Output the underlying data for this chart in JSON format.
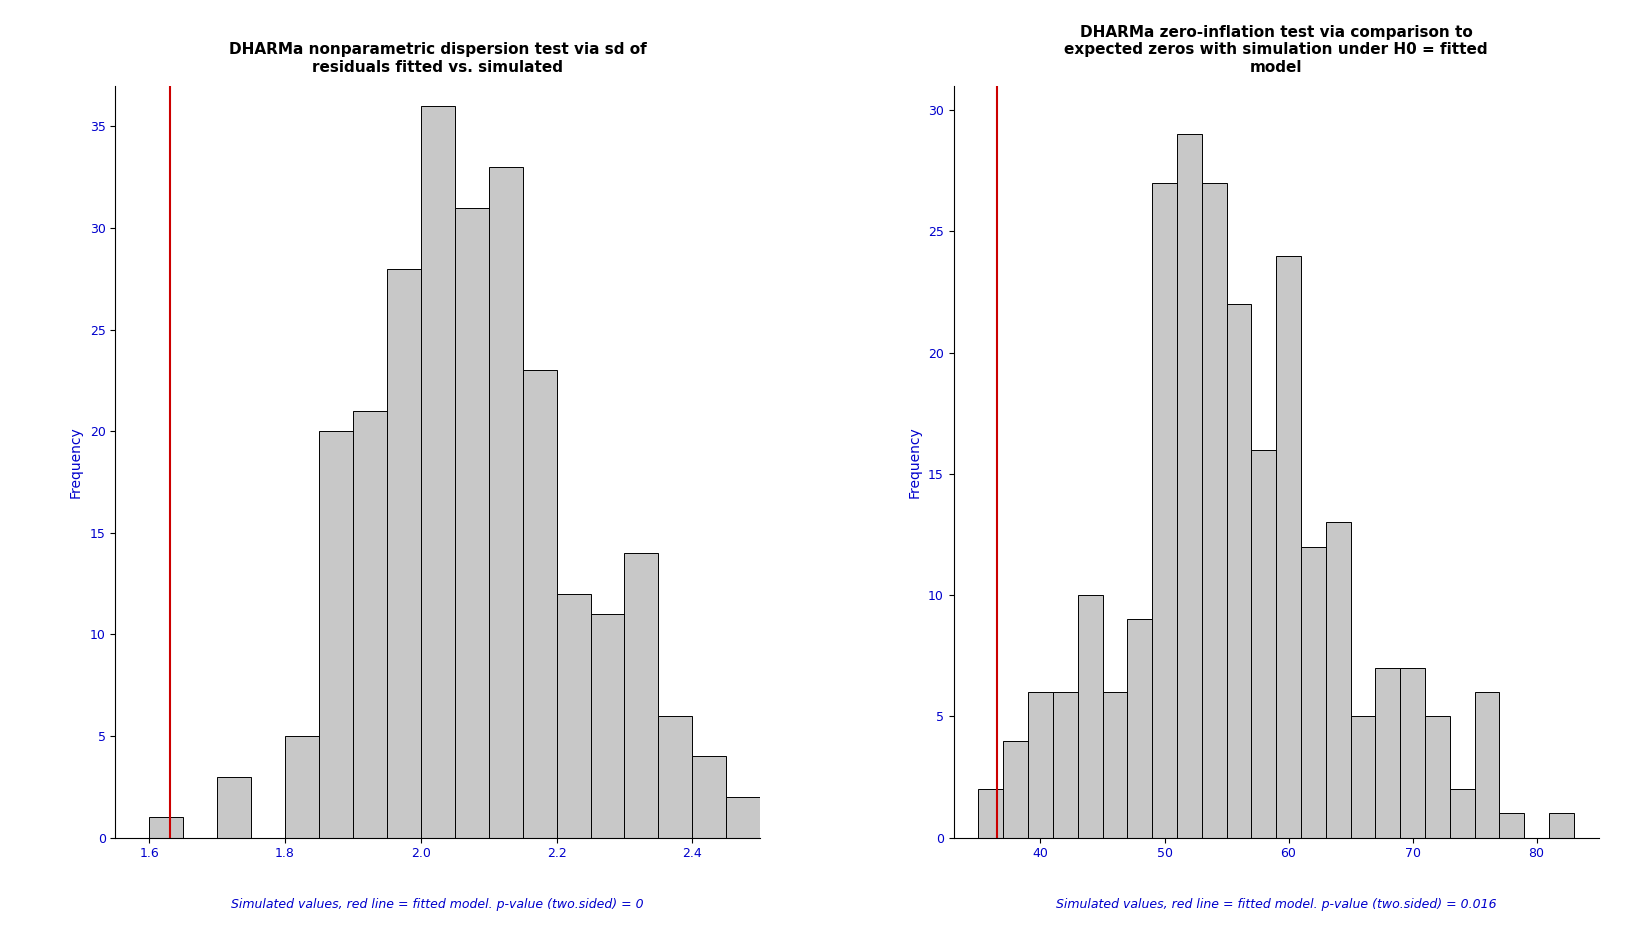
{
  "plot1": {
    "title": "DHARMa nonparametric dispersion test via sd of\nresiduals fitted vs. simulated",
    "ylabel": "Frequency",
    "caption": "Simulated values, red line = fitted model. p-value (two.sided) = 0",
    "bin_edges": [
      1.6,
      1.65,
      1.7,
      1.75,
      1.8,
      1.85,
      1.9,
      1.95,
      2.0,
      2.05,
      2.1,
      2.15,
      2.2,
      2.25,
      2.3,
      2.35,
      2.4,
      2.45,
      2.5
    ],
    "counts": [
      1,
      0,
      3,
      0,
      5,
      20,
      21,
      28,
      36,
      31,
      33,
      23,
      12,
      11,
      14,
      6,
      4,
      2
    ],
    "red_line_x": 1.63,
    "xlim": [
      1.55,
      2.5
    ],
    "ylim": [
      0,
      37
    ],
    "yticks": [
      0,
      5,
      10,
      15,
      20,
      25,
      30,
      35
    ],
    "xticks": [
      1.6,
      1.8,
      2.0,
      2.2,
      2.4
    ]
  },
  "plot2": {
    "title": "DHARMa zero-inflation test via comparison to\nexpected zeros with simulation under H0 = fitted\nmodel",
    "ylabel": "Frequency",
    "caption": "Simulated values, red line = fitted model. p-value (two.sided) = 0.016",
    "bin_edges": [
      35,
      37,
      39,
      41,
      43,
      45,
      47,
      49,
      51,
      53,
      55,
      57,
      59,
      61,
      63,
      65,
      67,
      69,
      71,
      73,
      75,
      77,
      79,
      81,
      83
    ],
    "counts": [
      2,
      4,
      6,
      6,
      10,
      6,
      9,
      27,
      29,
      27,
      22,
      16,
      24,
      12,
      13,
      5,
      7,
      7,
      5,
      2,
      6,
      1,
      0,
      1
    ],
    "red_line_x": 36.5,
    "xlim": [
      33,
      85
    ],
    "ylim": [
      0,
      31
    ],
    "yticks": [
      0,
      5,
      10,
      15,
      20,
      25,
      30
    ],
    "xticks": [
      40,
      50,
      60,
      70,
      80
    ]
  },
  "bar_color": "#c8c8c8",
  "bar_edgecolor": "#000000",
  "red_line_color": "#cc0000",
  "title_color": "#000000",
  "label_color": "#0000cc",
  "caption_color": "#0000cc",
  "background_color": "#ffffff",
  "title_fontsize": 11,
  "axis_label_fontsize": 10,
  "tick_fontsize": 9,
  "caption_fontsize": 9
}
